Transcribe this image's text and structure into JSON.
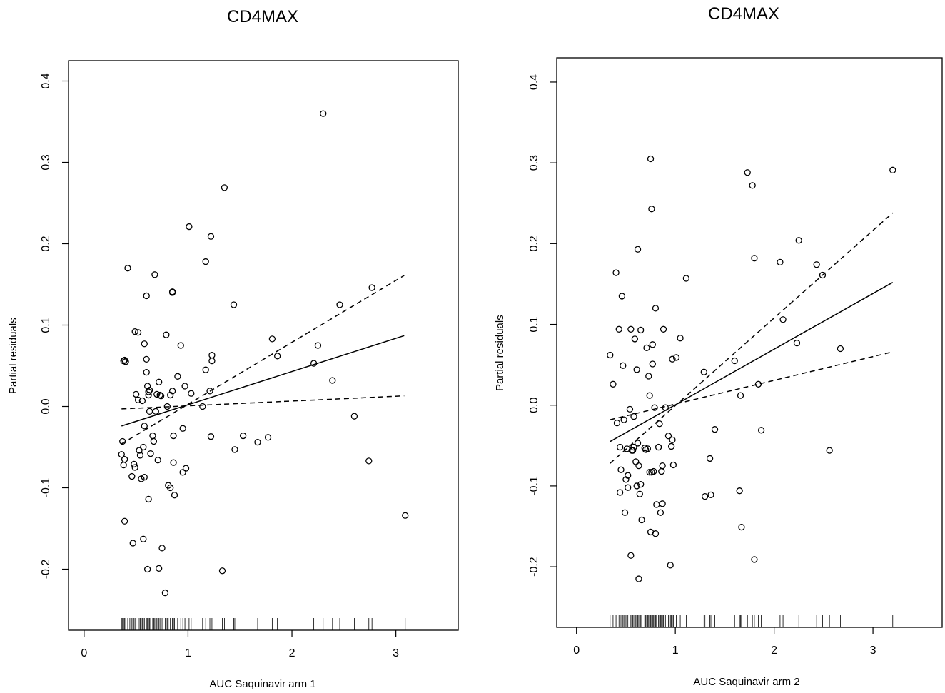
{
  "chart_data": [
    {
      "type": "scatter",
      "title": "CD4MAX",
      "xlabel": "AUC Saquinavir arm 1",
      "ylabel": "Partial residuals",
      "xlim": [
        -0.15,
        3.6
      ],
      "ylim": [
        -0.275,
        0.425
      ],
      "xticks": [
        0,
        1,
        2,
        3
      ],
      "yticks": [
        -0.2,
        -0.1,
        0.0,
        0.1,
        0.2,
        0.3,
        0.4
      ],
      "xtick_labels": [
        "0",
        "1",
        "2",
        "3"
      ],
      "ytick_labels": [
        "-0.2",
        "-0.1",
        "0.0",
        "0.1",
        "0.2",
        "0.3",
        "0.4"
      ],
      "grid": false,
      "points": [
        [
          0.38,
          0.056
        ],
        [
          0.39,
          0.057
        ],
        [
          0.4,
          0.055
        ],
        [
          0.42,
          0.17
        ],
        [
          0.37,
          -0.043
        ],
        [
          0.36,
          -0.059
        ],
        [
          0.38,
          -0.072
        ],
        [
          0.39,
          -0.065
        ],
        [
          0.39,
          -0.141
        ],
        [
          0.46,
          -0.086
        ],
        [
          0.47,
          -0.168
        ],
        [
          0.48,
          -0.071
        ],
        [
          0.49,
          -0.075
        ],
        [
          0.49,
          0.092
        ],
        [
          0.5,
          0.015
        ],
        [
          0.52,
          0.091
        ],
        [
          0.52,
          0.008
        ],
        [
          0.53,
          -0.054
        ],
        [
          0.54,
          -0.06
        ],
        [
          0.55,
          -0.089
        ],
        [
          0.56,
          0.007
        ],
        [
          0.57,
          -0.05
        ],
        [
          0.57,
          -0.163
        ],
        [
          0.58,
          0.077
        ],
        [
          0.58,
          -0.087
        ],
        [
          0.58,
          -0.024
        ],
        [
          0.6,
          0.136
        ],
        [
          0.6,
          0.058
        ],
        [
          0.6,
          0.042
        ],
        [
          0.61,
          0.025
        ],
        [
          0.61,
          -0.2
        ],
        [
          0.62,
          -0.114
        ],
        [
          0.62,
          0.018
        ],
        [
          0.62,
          0.014
        ],
        [
          0.63,
          0.02
        ],
        [
          0.63,
          -0.006
        ],
        [
          0.64,
          -0.058
        ],
        [
          0.66,
          -0.036
        ],
        [
          0.67,
          -0.043
        ],
        [
          0.68,
          0.162
        ],
        [
          0.69,
          -0.006
        ],
        [
          0.7,
          0.015
        ],
        [
          0.71,
          -0.066
        ],
        [
          0.72,
          -0.199
        ],
        [
          0.72,
          0.03
        ],
        [
          0.73,
          0.014
        ],
        [
          0.74,
          0.013
        ],
        [
          0.75,
          -0.174
        ],
        [
          0.78,
          -0.229
        ],
        [
          0.79,
          0.088
        ],
        [
          0.8,
          0.0
        ],
        [
          0.81,
          -0.097
        ],
        [
          0.83,
          -0.1
        ],
        [
          0.83,
          0.014
        ],
        [
          0.85,
          0.141
        ],
        [
          0.85,
          0.14
        ],
        [
          0.85,
          0.019
        ],
        [
          0.86,
          -0.036
        ],
        [
          0.86,
          -0.069
        ],
        [
          0.87,
          -0.109
        ],
        [
          0.9,
          0.037
        ],
        [
          0.93,
          0.075
        ],
        [
          0.95,
          -0.027
        ],
        [
          0.95,
          -0.081
        ],
        [
          0.97,
          0.025
        ],
        [
          0.98,
          -0.076
        ],
        [
          1.01,
          0.221
        ],
        [
          1.03,
          0.016
        ],
        [
          1.14,
          0.0
        ],
        [
          1.17,
          0.178
        ],
        [
          1.17,
          0.045
        ],
        [
          1.21,
          0.019
        ],
        [
          1.22,
          -0.037
        ],
        [
          1.22,
          0.209
        ],
        [
          1.23,
          0.063
        ],
        [
          1.23,
          0.056
        ],
        [
          1.33,
          -0.202
        ],
        [
          1.35,
          0.269
        ],
        [
          1.44,
          0.125
        ],
        [
          1.45,
          -0.053
        ],
        [
          1.53,
          -0.036
        ],
        [
          1.67,
          -0.044
        ],
        [
          1.77,
          -0.038
        ],
        [
          1.81,
          0.083
        ],
        [
          1.86,
          0.062
        ],
        [
          2.21,
          0.053
        ],
        [
          2.25,
          0.075
        ],
        [
          2.3,
          0.36
        ],
        [
          2.39,
          0.032
        ],
        [
          2.46,
          0.125
        ],
        [
          2.6,
          -0.012
        ],
        [
          2.74,
          -0.067
        ],
        [
          2.77,
          0.146
        ],
        [
          3.09,
          -0.134
        ]
      ],
      "lines": [
        {
          "style": "solid",
          "x": [
            0.36,
            3.08
          ],
          "y": [
            -0.024,
            0.087
          ]
        },
        {
          "style": "dashed",
          "x": [
            0.36,
            3.08
          ],
          "y": [
            -0.046,
            0.161
          ]
        },
        {
          "style": "dashed",
          "x": [
            0.36,
            3.08
          ],
          "y": [
            -0.003,
            0.013
          ]
        }
      ],
      "rug": [
        0.36,
        0.37,
        0.38,
        0.39,
        0.4,
        0.42,
        0.44,
        0.46,
        0.47,
        0.48,
        0.49,
        0.5,
        0.52,
        0.53,
        0.54,
        0.55,
        0.56,
        0.57,
        0.58,
        0.6,
        0.61,
        0.62,
        0.63,
        0.64,
        0.66,
        0.67,
        0.68,
        0.69,
        0.7,
        0.71,
        0.72,
        0.73,
        0.74,
        0.75,
        0.78,
        0.79,
        0.8,
        0.81,
        0.83,
        0.85,
        0.86,
        0.87,
        0.9,
        0.93,
        0.95,
        0.97,
        0.98,
        1.01,
        1.03,
        1.14,
        1.17,
        1.21,
        1.22,
        1.23,
        1.33,
        1.35,
        1.44,
        1.45,
        1.53,
        1.67,
        1.77,
        1.81,
        1.86,
        2.21,
        2.25,
        2.3,
        2.39,
        2.46,
        2.6,
        2.74,
        2.77,
        3.09
      ]
    },
    {
      "type": "scatter",
      "title": "CD4MAX",
      "xlabel": "AUC Saquinavir arm 2",
      "ylabel": "Partial residuals",
      "xlim": [
        -0.2,
        3.7
      ],
      "ylim": [
        -0.275,
        0.43
      ],
      "xticks": [
        0,
        1,
        2,
        3
      ],
      "yticks": [
        -0.2,
        -0.1,
        0.0,
        0.1,
        0.2,
        0.3,
        0.4
      ],
      "xtick_labels": [
        "0",
        "1",
        "2",
        "3"
      ],
      "ytick_labels": [
        "-0.2",
        "-0.1",
        "0.0",
        "0.1",
        "0.2",
        "0.3",
        "0.4"
      ],
      "grid": false,
      "points": [
        [
          0.34,
          0.062
        ],
        [
          0.37,
          0.026
        ],
        [
          0.4,
          0.164
        ],
        [
          0.41,
          -0.022
        ],
        [
          0.43,
          0.094
        ],
        [
          0.44,
          -0.052
        ],
        [
          0.44,
          -0.108
        ],
        [
          0.45,
          -0.08
        ],
        [
          0.46,
          0.135
        ],
        [
          0.47,
          0.049
        ],
        [
          0.48,
          -0.018
        ],
        [
          0.49,
          -0.133
        ],
        [
          0.5,
          -0.092
        ],
        [
          0.51,
          -0.054
        ],
        [
          0.52,
          -0.087
        ],
        [
          0.52,
          -0.102
        ],
        [
          0.54,
          -0.005
        ],
        [
          0.55,
          0.094
        ],
        [
          0.55,
          -0.186
        ],
        [
          0.56,
          -0.056
        ],
        [
          0.57,
          -0.056
        ],
        [
          0.58,
          -0.014
        ],
        [
          0.58,
          -0.052
        ],
        [
          0.59,
          0.082
        ],
        [
          0.6,
          -0.07
        ],
        [
          0.61,
          -0.1
        ],
        [
          0.61,
          0.044
        ],
        [
          0.62,
          -0.047
        ],
        [
          0.62,
          0.193
        ],
        [
          0.63,
          -0.075
        ],
        [
          0.63,
          -0.215
        ],
        [
          0.64,
          -0.11
        ],
        [
          0.65,
          0.093
        ],
        [
          0.65,
          -0.098
        ],
        [
          0.66,
          -0.142
        ],
        [
          0.69,
          -0.053
        ],
        [
          0.7,
          -0.055
        ],
        [
          0.71,
          0.071
        ],
        [
          0.72,
          -0.054
        ],
        [
          0.73,
          0.036
        ],
        [
          0.74,
          -0.083
        ],
        [
          0.74,
          0.012
        ],
        [
          0.75,
          -0.157
        ],
        [
          0.75,
          0.305
        ],
        [
          0.76,
          0.243
        ],
        [
          0.76,
          -0.083
        ],
        [
          0.77,
          0.075
        ],
        [
          0.77,
          0.051
        ],
        [
          0.78,
          -0.082
        ],
        [
          0.79,
          -0.003
        ],
        [
          0.8,
          0.12
        ],
        [
          0.8,
          -0.159
        ],
        [
          0.81,
          -0.123
        ],
        [
          0.83,
          -0.052
        ],
        [
          0.84,
          -0.023
        ],
        [
          0.85,
          -0.133
        ],
        [
          0.86,
          -0.082
        ],
        [
          0.87,
          -0.075
        ],
        [
          0.87,
          -0.122
        ],
        [
          0.88,
          0.094
        ],
        [
          0.9,
          -0.003
        ],
        [
          0.93,
          -0.038
        ],
        [
          0.95,
          -0.198
        ],
        [
          0.96,
          -0.051
        ],
        [
          0.97,
          0.057
        ],
        [
          0.97,
          -0.043
        ],
        [
          0.98,
          -0.074
        ],
        [
          1.01,
          0.059
        ],
        [
          1.05,
          0.083
        ],
        [
          1.11,
          0.157
        ],
        [
          1.29,
          0.041
        ],
        [
          1.3,
          -0.113
        ],
        [
          1.35,
          -0.066
        ],
        [
          1.36,
          -0.111
        ],
        [
          1.4,
          -0.03
        ],
        [
          1.6,
          0.055
        ],
        [
          1.65,
          -0.106
        ],
        [
          1.66,
          0.012
        ],
        [
          1.67,
          -0.151
        ],
        [
          1.73,
          0.288
        ],
        [
          1.78,
          0.272
        ],
        [
          1.8,
          0.182
        ],
        [
          1.8,
          -0.191
        ],
        [
          1.84,
          0.026
        ],
        [
          1.87,
          -0.031
        ],
        [
          2.06,
          0.177
        ],
        [
          2.09,
          0.106
        ],
        [
          2.23,
          0.077
        ],
        [
          2.25,
          0.204
        ],
        [
          2.43,
          0.174
        ],
        [
          2.49,
          0.161
        ],
        [
          2.56,
          -0.056
        ],
        [
          2.67,
          0.07
        ],
        [
          3.2,
          0.291
        ]
      ],
      "lines": [
        {
          "style": "solid",
          "x": [
            0.34,
            3.2
          ],
          "y": [
            -0.045,
            0.152
          ]
        },
        {
          "style": "dashed",
          "x": [
            0.34,
            3.2
          ],
          "y": [
            -0.072,
            0.238
          ]
        },
        {
          "style": "dashed",
          "x": [
            0.34,
            3.2
          ],
          "y": [
            -0.018,
            0.066
          ]
        }
      ],
      "rug": [
        0.34,
        0.37,
        0.4,
        0.41,
        0.43,
        0.44,
        0.45,
        0.46,
        0.47,
        0.48,
        0.49,
        0.5,
        0.51,
        0.52,
        0.54,
        0.55,
        0.56,
        0.57,
        0.58,
        0.59,
        0.6,
        0.61,
        0.62,
        0.63,
        0.64,
        0.65,
        0.66,
        0.69,
        0.7,
        0.71,
        0.72,
        0.73,
        0.74,
        0.75,
        0.76,
        0.77,
        0.78,
        0.79,
        0.8,
        0.81,
        0.83,
        0.84,
        0.85,
        0.86,
        0.87,
        0.88,
        0.9,
        0.93,
        0.95,
        0.96,
        0.97,
        0.98,
        1.01,
        1.05,
        1.11,
        1.29,
        1.3,
        1.35,
        1.36,
        1.4,
        1.6,
        1.65,
        1.66,
        1.67,
        1.73,
        1.78,
        1.8,
        1.84,
        1.87,
        2.06,
        2.09,
        2.23,
        2.25,
        2.43,
        2.49,
        2.56,
        2.67,
        3.2
      ]
    }
  ]
}
